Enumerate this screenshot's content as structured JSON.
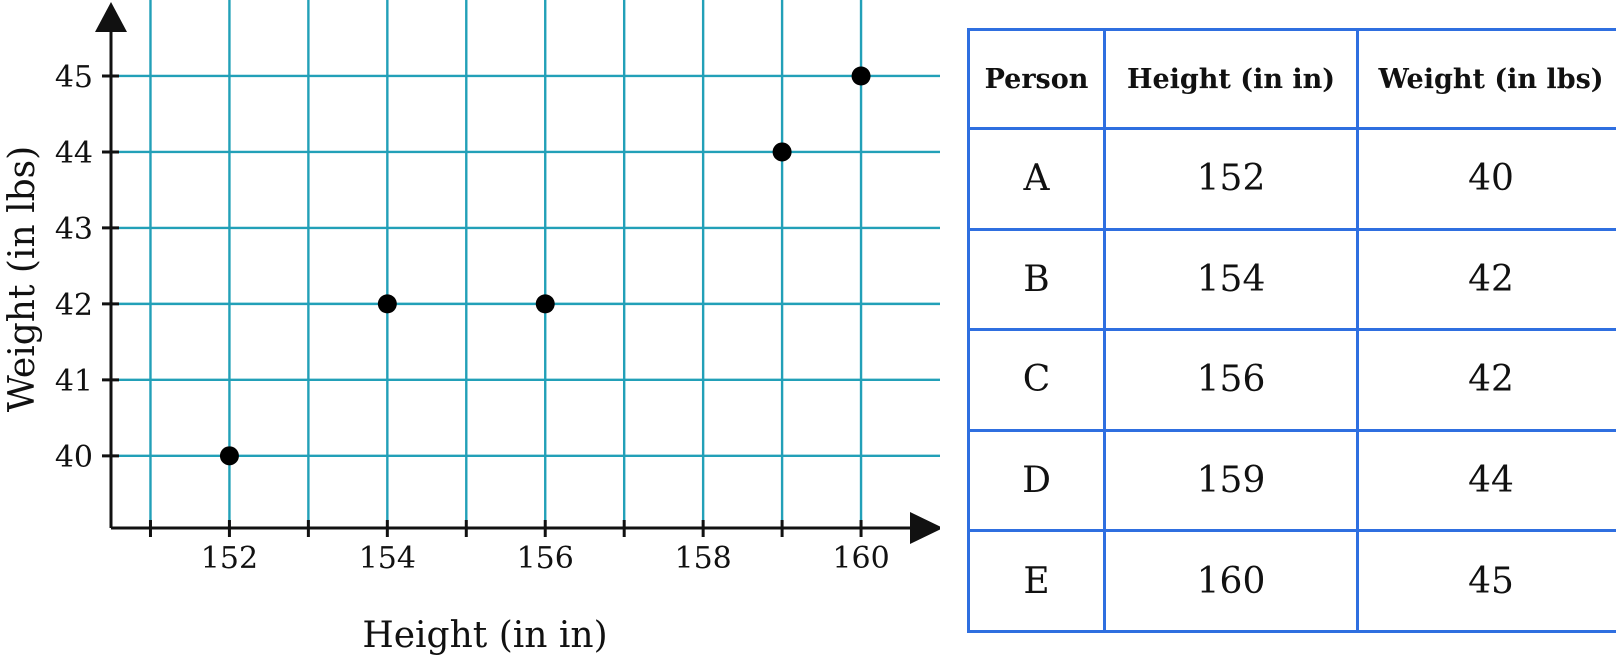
{
  "chart_data": {
    "type": "scatter",
    "xlabel": "Height (in in)",
    "ylabel": "Weight (in lbs)",
    "xlim": [
      150.5,
      161
    ],
    "ylim": [
      39.05,
      46
    ],
    "x_ticks": [
      152,
      154,
      156,
      158,
      160
    ],
    "y_ticks": [
      40,
      41,
      42,
      43,
      44,
      45
    ],
    "grid": true,
    "points": [
      {
        "x": 152,
        "y": 40
      },
      {
        "x": 154,
        "y": 42
      },
      {
        "x": 156,
        "y": 42
      },
      {
        "x": 159,
        "y": 44
      },
      {
        "x": 160,
        "y": 45
      }
    ],
    "colors": {
      "grid": "#22a0b8",
      "axis": "#111111",
      "point": "#000000"
    }
  },
  "table": {
    "headers": [
      "Person",
      "Height (in in)",
      "Weight (in lbs)"
    ],
    "rows": [
      [
        "A",
        "152",
        "40"
      ],
      [
        "B",
        "154",
        "42"
      ],
      [
        "C",
        "156",
        "42"
      ],
      [
        "D",
        "159",
        "44"
      ],
      [
        "E",
        "160",
        "45"
      ]
    ],
    "border_color": "#2f6fe0"
  }
}
